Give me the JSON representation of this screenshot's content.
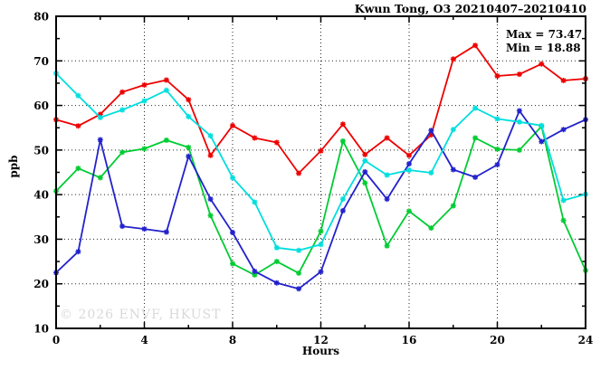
{
  "title": "Kwun Tong, O3 20210407–20210410",
  "annotations": {
    "max": "Max = 73.47",
    "min": "Min = 18.88"
  },
  "watermark": "© 2026 ENVF, HKUST",
  "colors": {
    "series_red": "#ee0000",
    "series_green": "#00cc33",
    "series_blue": "#2222cc",
    "series_cyan": "#00dede",
    "grid": "#000000",
    "watermark_gray": "#d9d9d9"
  },
  "chart_data": {
    "type": "line",
    "title": "Kwun Tong, O3 20210407–20210410",
    "xlabel": "Hours",
    "ylabel": "ppb",
    "xlim": [
      0,
      24
    ],
    "ylim": [
      10,
      80
    ],
    "x_major_ticks": [
      0,
      4,
      8,
      12,
      16,
      20,
      24
    ],
    "x_minor_ticks": [
      2,
      6,
      10,
      14,
      18,
      22
    ],
    "y_major_ticks": [
      10,
      20,
      30,
      40,
      50,
      60,
      70,
      80
    ],
    "y_minor_ticks": [
      15,
      25,
      35,
      45,
      55,
      65,
      75
    ],
    "grid": "dotted-at-major-ticks",
    "legend": "none",
    "marker": "asterisk",
    "max": 73.47,
    "min": 18.88,
    "x": [
      0,
      1,
      2,
      3,
      4,
      5,
      6,
      7,
      8,
      9,
      10,
      11,
      12,
      13,
      14,
      15,
      16,
      17,
      18,
      19,
      20,
      21,
      22,
      23,
      24
    ],
    "series": [
      {
        "name": "red",
        "color": "#ee0000",
        "values": [
          56.8,
          55.4,
          58.0,
          63.0,
          64.6,
          65.7,
          61.3,
          48.8,
          55.5,
          52.7,
          51.7,
          44.8,
          49.8,
          55.8,
          49.0,
          52.7,
          48.8,
          53.4,
          70.4,
          73.47,
          66.6,
          67.0,
          69.3,
          65.6,
          66.0
        ]
      },
      {
        "name": "green",
        "color": "#00cc33",
        "values": [
          40.8,
          45.9,
          43.8,
          49.5,
          50.3,
          52.2,
          50.6,
          35.3,
          24.5,
          22.0,
          25.0,
          22.4,
          31.8,
          52.0,
          42.6,
          28.5,
          36.3,
          32.5,
          37.5,
          52.7,
          50.2,
          50.0,
          55.3,
          34.2,
          23.0
        ]
      },
      {
        "name": "blue",
        "color": "#2222cc",
        "values": [
          22.5,
          27.2,
          52.3,
          32.9,
          32.3,
          31.6,
          48.6,
          39.0,
          31.5,
          22.8,
          20.2,
          18.88,
          22.7,
          36.4,
          45.1,
          39.0,
          46.9,
          54.4,
          45.6,
          43.9,
          46.7,
          58.8,
          51.9,
          54.6,
          56.8
        ]
      },
      {
        "name": "cyan",
        "color": "#00dede",
        "values": [
          67.2,
          62.2,
          57.3,
          59.0,
          61.0,
          63.4,
          57.5,
          53.2,
          43.8,
          38.3,
          28.1,
          27.5,
          28.8,
          39.0,
          47.6,
          44.4,
          45.5,
          44.9,
          54.6,
          59.4,
          57.0,
          56.3,
          55.5,
          38.7,
          40.1
        ]
      }
    ]
  }
}
